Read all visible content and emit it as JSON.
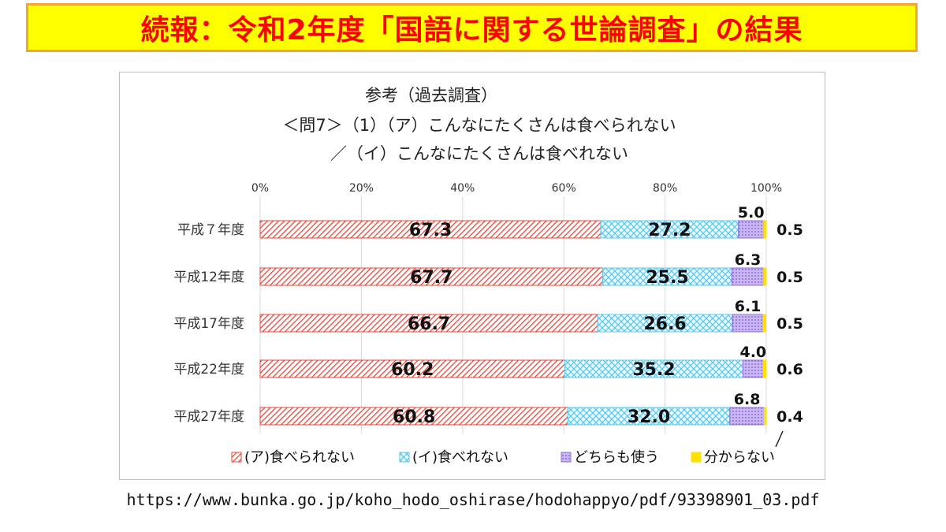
{
  "banner": {
    "title": "続報：令和2年度「国語に関する世論調査」の結果"
  },
  "source_url": "https://www.bunka.go.jp/koho_hodo_oshirase/hodohappyo/pdf/93398901_03.pdf",
  "colors": {
    "banner_bg": "#ffff00",
    "banner_border": "#f3a531",
    "banner_text": "#ff0000",
    "series_a": "#e8463a",
    "series_b": "#5bc8ee",
    "series_c": "#8e6fd8",
    "series_d": "#ffe000"
  },
  "chart_data": {
    "type": "bar",
    "orientation": "horizontal",
    "stacked": true,
    "title_lines": [
      "参考（過去調査）",
      "＜問7＞（1）（ア）こんなにたくさんは食べられない",
      "／（イ）こんなにたくさんは食べれない"
    ],
    "categories": [
      "平成７年度",
      "平成12年度",
      "平成17年度",
      "平成22年度",
      "平成27年度"
    ],
    "x_ticks": [
      "0%",
      "20%",
      "40%",
      "60%",
      "80%",
      "100%"
    ],
    "xlim": [
      0,
      100
    ],
    "grid": true,
    "legend_position": "bottom",
    "series": [
      {
        "name": "(ア)食べられない",
        "values": [
          67.3,
          67.7,
          66.7,
          60.2,
          60.8
        ],
        "labels": [
          "67.3",
          "67.7",
          "66.7",
          "60.2",
          "60.8"
        ]
      },
      {
        "name": "(イ)食べれない",
        "values": [
          27.2,
          25.5,
          26.6,
          35.2,
          32.0
        ],
        "labels": [
          "27.2",
          "25.5",
          "26.6",
          "35.2",
          "32.0"
        ]
      },
      {
        "name": "どちらも使う",
        "values": [
          5.0,
          6.3,
          6.1,
          4.0,
          6.8
        ],
        "labels": [
          "5.0",
          "6.3",
          "6.1",
          "4.0",
          "6.8"
        ]
      },
      {
        "name": "分からない",
        "values": [
          0.5,
          0.5,
          0.5,
          0.6,
          0.4
        ],
        "labels": [
          "0.5",
          "0.5",
          "0.5",
          "0.6",
          "0.4"
        ]
      }
    ]
  }
}
